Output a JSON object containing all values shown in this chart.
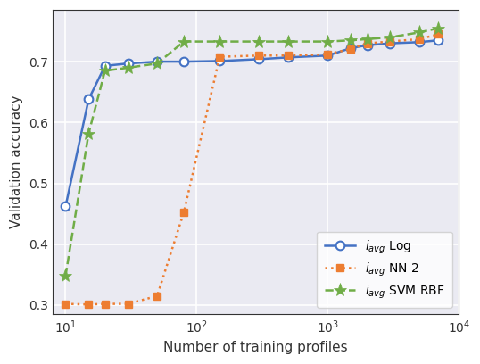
{
  "log_x": [
    10,
    15,
    20,
    30,
    50,
    80,
    150,
    300,
    500,
    1000,
    1500,
    2000,
    3000,
    5000,
    7000
  ],
  "log_y": [
    0.462,
    0.638,
    0.693,
    0.697,
    0.7,
    0.7,
    0.701,
    0.704,
    0.707,
    0.71,
    0.722,
    0.727,
    0.73,
    0.732,
    0.735
  ],
  "nn2_x": [
    10,
    15,
    20,
    30,
    50,
    80,
    150,
    300,
    500,
    1000,
    1500,
    2000,
    3000,
    5000,
    7000
  ],
  "nn2_y": [
    0.302,
    0.301,
    0.302,
    0.302,
    0.315,
    0.453,
    0.708,
    0.71,
    0.71,
    0.712,
    0.721,
    0.73,
    0.733,
    0.737,
    0.745
  ],
  "svm_x": [
    10,
    15,
    20,
    30,
    50,
    80,
    150,
    300,
    500,
    1000,
    1500,
    2000,
    3000,
    5000,
    7000
  ],
  "svm_y": [
    0.348,
    0.582,
    0.685,
    0.69,
    0.697,
    0.733,
    0.733,
    0.733,
    0.733,
    0.733,
    0.735,
    0.737,
    0.74,
    0.748,
    0.755
  ],
  "log_color": "#4472c4",
  "nn2_color": "#ed7d31",
  "svm_color": "#70ad47",
  "xlabel": "Number of training profiles",
  "ylabel": "Validation accuracy",
  "xlim": [
    8,
    10000
  ],
  "ylim": [
    0.285,
    0.785
  ],
  "yticks": [
    0.3,
    0.4,
    0.5,
    0.6,
    0.7
  ],
  "legend_log": "$i_{avg}$ Log",
  "legend_nn2": "$i_{avg}$ NN 2",
  "legend_svm": "$i_{avg}$ SVM RBF",
  "bg_color": "#eaeaf2",
  "grid_color": "#ffffff",
  "spine_color": "#cccccc"
}
